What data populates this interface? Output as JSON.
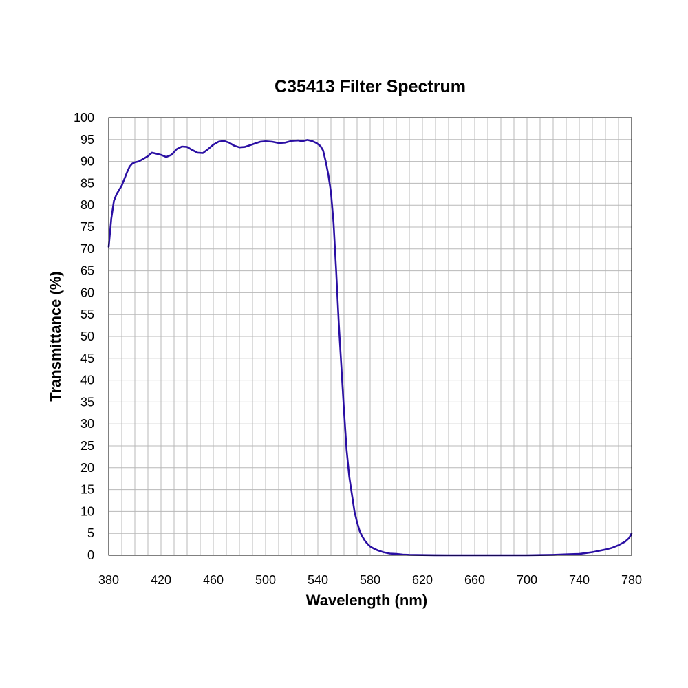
{
  "chart_data": {
    "type": "line",
    "title": "C35413 Filter Spectrum",
    "xlabel": "Wavelength (nm)",
    "ylabel": "Transmittance (%)",
    "xlim": [
      380,
      780
    ],
    "ylim": [
      0,
      100
    ],
    "x_ticks": [
      380,
      420,
      460,
      500,
      540,
      580,
      620,
      660,
      700,
      740,
      780
    ],
    "y_ticks": [
      0,
      5,
      10,
      15,
      20,
      25,
      30,
      35,
      40,
      45,
      50,
      55,
      60,
      65,
      70,
      75,
      80,
      85,
      90,
      95,
      100
    ],
    "x_minor_step": 10,
    "grid": true,
    "legend": "none",
    "line_color": "#2a0fa3",
    "series": [
      {
        "x": [
          380,
          382,
          384,
          386,
          388,
          390,
          392,
          394,
          396,
          398,
          400,
          403,
          406,
          410,
          413,
          416,
          420,
          424,
          428,
          432,
          436,
          440,
          444,
          448,
          452,
          456,
          460,
          464,
          468,
          472,
          476,
          480,
          484,
          488,
          492,
          496,
          500,
          505,
          510,
          515,
          520,
          525,
          528,
          532,
          536,
          539,
          542,
          544,
          546,
          548,
          550,
          552,
          554,
          556,
          558,
          560,
          562,
          564,
          566,
          568,
          570,
          572,
          574,
          576,
          578,
          580,
          583,
          586,
          590,
          595,
          600,
          605,
          610,
          620,
          630,
          640,
          660,
          680,
          700,
          710,
          720,
          730,
          740,
          745,
          750,
          755,
          760,
          765,
          770,
          775,
          778,
          780
        ],
        "y": [
          70.5,
          77,
          81,
          82.5,
          83.5,
          84.5,
          86,
          87.5,
          88.8,
          89.5,
          89.8,
          90,
          90.5,
          91.2,
          92,
          91.8,
          91.5,
          91,
          91.5,
          92.8,
          93.4,
          93.3,
          92.6,
          92,
          91.9,
          92.8,
          93.8,
          94.5,
          94.7,
          94.3,
          93.6,
          93.2,
          93.3,
          93.7,
          94.1,
          94.5,
          94.6,
          94.5,
          94.2,
          94.3,
          94.7,
          94.8,
          94.6,
          94.9,
          94.6,
          94.2,
          93.5,
          92.5,
          90,
          87,
          83,
          76,
          65,
          53,
          43,
          33,
          24,
          18,
          14,
          10,
          7.5,
          5.5,
          4.3,
          3.3,
          2.6,
          2,
          1.5,
          1.1,
          0.7,
          0.4,
          0.3,
          0.15,
          0.1,
          0.05,
          0.02,
          0,
          0,
          0,
          0,
          0.05,
          0.1,
          0.2,
          0.3,
          0.5,
          0.7,
          1,
          1.3,
          1.7,
          2.3,
          3.1,
          3.9,
          5
        ]
      }
    ]
  }
}
